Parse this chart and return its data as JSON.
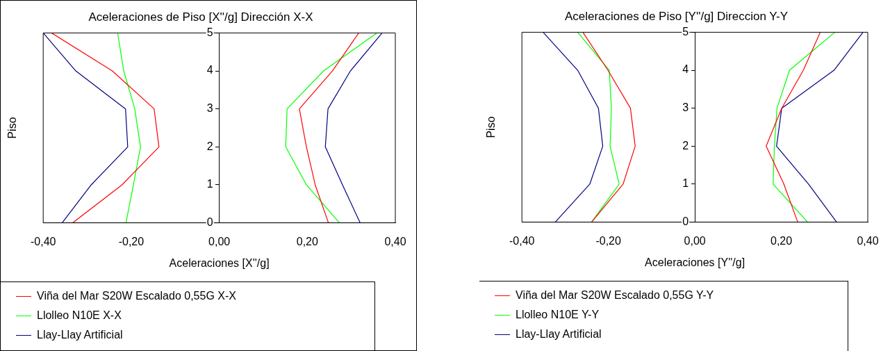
{
  "chart_data": [
    {
      "type": "line",
      "title": "Aceleraciones de Piso [X''/g] Dirección X-X",
      "xlabel": "Aceleraciones [X''/g]",
      "ylabel": "Piso",
      "xlim": [
        -0.4,
        0.4
      ],
      "xticks": [
        {
          "value": -0.4,
          "label": "-0,40"
        },
        {
          "value": -0.2,
          "label": "-0,20"
        },
        {
          "value": 0,
          "label": "0,00"
        },
        {
          "value": 0.2,
          "label": "0,20"
        },
        {
          "value": 0.4,
          "label": "0,40"
        }
      ],
      "ylim": [
        0,
        5
      ],
      "yticks": [
        0,
        1,
        2,
        3,
        4,
        5
      ],
      "grid": false,
      "legend": "bottom left",
      "marker": "none",
      "line_style": "solid",
      "series": [
        {
          "name": "Viña del Mar S20W Escalado 0,55G X-X",
          "color": "#ff0000",
          "x": [
            -0.333,
            -0.221,
            -0.137,
            -0.148,
            -0.243,
            -0.381
          ],
          "values": [
            0,
            1,
            2,
            3,
            4,
            5
          ]
        },
        {
          "name": "Llolleo N10E X-X",
          "color": "#00ff00",
          "x": [
            -0.212,
            -0.195,
            -0.179,
            -0.192,
            -0.217,
            -0.231
          ],
          "values": [
            0,
            1,
            2,
            3,
            4,
            5
          ]
        },
        {
          "name": "Llay-Llay Artificial",
          "color": "#000080",
          "x": [
            -0.357,
            -0.291,
            -0.208,
            -0.213,
            -0.326,
            -0.4
          ],
          "values": [
            0,
            1,
            2,
            3,
            4,
            5
          ]
        },
        {
          "color": "#ff0000",
          "x": [
            0.248,
            0.218,
            0.198,
            0.182,
            0.257,
            0.317
          ],
          "values": [
            0,
            1,
            2,
            3,
            4,
            5
          ]
        },
        {
          "color": "#00ff00",
          "x": [
            0.273,
            0.198,
            0.151,
            0.154,
            0.237,
            0.358
          ],
          "values": [
            0,
            1,
            2,
            3,
            4,
            5
          ]
        },
        {
          "color": "#000080",
          "x": [
            0.32,
            0.28,
            0.241,
            0.247,
            0.298,
            0.37
          ],
          "values": [
            0,
            1,
            2,
            3,
            4,
            5
          ]
        }
      ]
    },
    {
      "type": "line",
      "title": "Aceleraciones de Piso [Y''/g] Direccion Y-Y",
      "xlabel": "Aceleraciones [Y''/g]",
      "ylabel": "Piso",
      "xlim": [
        -0.4,
        0.4
      ],
      "xticks": [
        {
          "value": -0.4,
          "label": "-0,40"
        },
        {
          "value": -0.2,
          "label": "-0,20"
        },
        {
          "value": 0,
          "label": "0,00"
        },
        {
          "value": 0.2,
          "label": "0,20"
        },
        {
          "value": 0.4,
          "label": "0,40"
        }
      ],
      "ylim": [
        0,
        5
      ],
      "yticks": [
        0,
        1,
        2,
        3,
        4,
        5
      ],
      "grid": false,
      "legend": "bottom left",
      "marker": "none",
      "line_style": "solid",
      "series": [
        {
          "name": "Viña del Mar S20W Escalado 0,55G Y-Y",
          "color": "#ff0000",
          "x": [
            -0.239,
            -0.166,
            -0.138,
            -0.149,
            -0.201,
            -0.259
          ],
          "values": [
            0,
            1,
            2,
            3,
            4,
            5
          ]
        },
        {
          "name": "Llolleo N10E Y-Y",
          "color": "#00ff00",
          "x": [
            -0.239,
            -0.175,
            -0.196,
            -0.193,
            -0.198,
            -0.271
          ],
          "values": [
            0,
            1,
            2,
            3,
            4,
            5
          ]
        },
        {
          "name": "Llay-Llay Artificial",
          "color": "#000080",
          "x": [
            -0.323,
            -0.243,
            -0.213,
            -0.223,
            -0.271,
            -0.351
          ],
          "values": [
            0,
            1,
            2,
            3,
            4,
            5
          ]
        },
        {
          "color": "#ff0000",
          "x": [
            0.238,
            0.206,
            0.165,
            0.201,
            0.251,
            0.29
          ],
          "values": [
            0,
            1,
            2,
            3,
            4,
            5
          ]
        },
        {
          "color": "#00ff00",
          "x": [
            0.261,
            0.181,
            0.184,
            0.19,
            0.219,
            0.324
          ],
          "values": [
            0,
            1,
            2,
            3,
            4,
            5
          ]
        },
        {
          "color": "#000080",
          "x": [
            0.328,
            0.263,
            0.189,
            0.201,
            0.322,
            0.389
          ],
          "values": [
            0,
            1,
            2,
            3,
            4,
            5
          ]
        }
      ]
    }
  ]
}
